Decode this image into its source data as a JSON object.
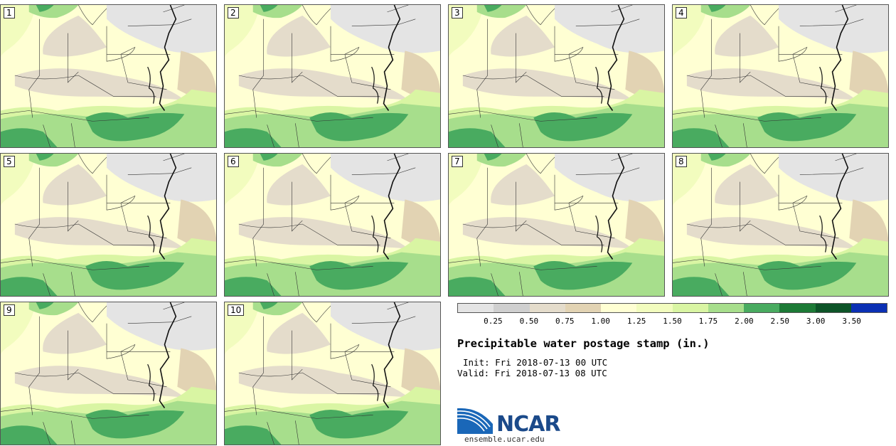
{
  "panels": [
    {
      "label": "1"
    },
    {
      "label": "2"
    },
    {
      "label": "3"
    },
    {
      "label": "4"
    },
    {
      "label": "5"
    },
    {
      "label": "6"
    },
    {
      "label": "7"
    },
    {
      "label": "8"
    },
    {
      "label": "9"
    },
    {
      "label": "10"
    }
  ],
  "colorbar": {
    "colors": [
      "#e4e4e4",
      "#cfcfcf",
      "#e4dccb",
      "#e2d3b3",
      "#ffffd3",
      "#f2fcbe",
      "#d9f5a3",
      "#a7de8c",
      "#49ab60",
      "#1d7a36",
      "#0d5428",
      "#0b30b4"
    ],
    "ticks": [
      "0.25",
      "0.50",
      "0.75",
      "1.00",
      "1.25",
      "1.50",
      "1.75",
      "2.00",
      "2.50",
      "3.00",
      "3.50"
    ]
  },
  "title": "Precipitable water postage stamp (in.)",
  "init": "Init: Fri 2018-07-13 00 UTC",
  "valid": "Valid: Fri 2018-07-13 08 UTC",
  "logo": {
    "name": "NCAR",
    "site": "ensemble.ucar.edu"
  }
}
